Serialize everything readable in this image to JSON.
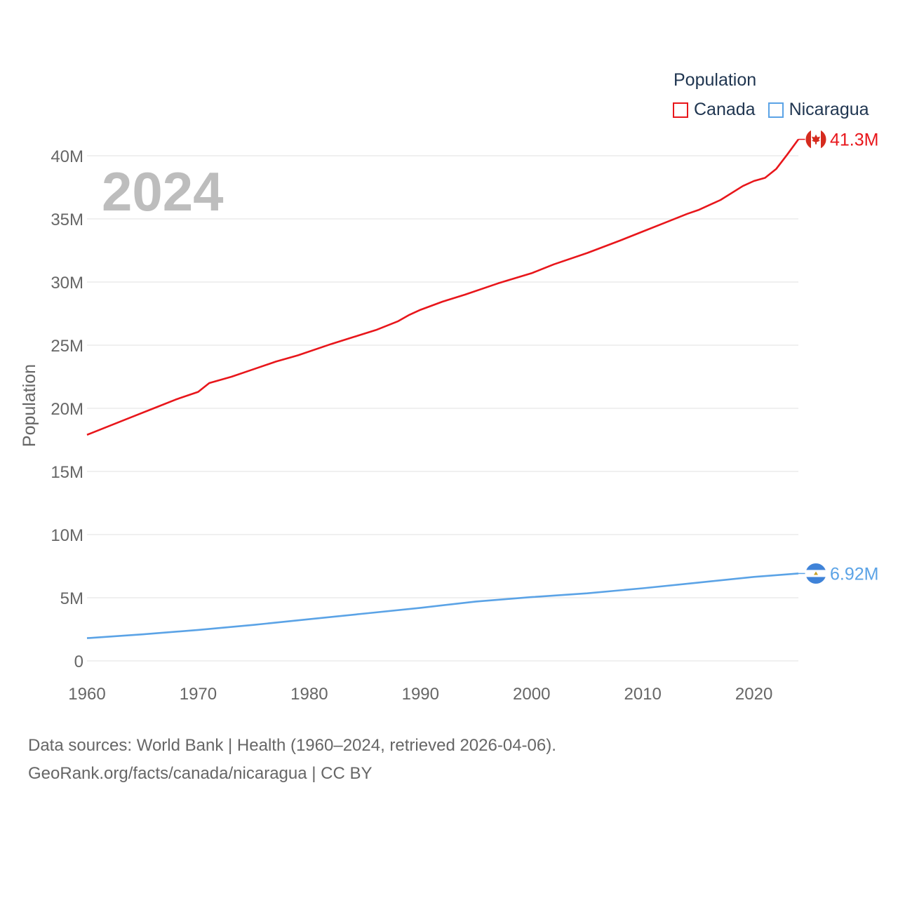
{
  "legend": {
    "title": "Population",
    "items": [
      {
        "label": "Canada",
        "color": "#e8161b"
      },
      {
        "label": "Nicaragua",
        "color": "#5ba3e6"
      }
    ]
  },
  "source": {
    "line1": "Data sources: World Bank | Health (1960–2024, retrieved 2026-04-06).",
    "line2": "GeoRank.org/facts/canada/nicaragua | CC BY"
  },
  "chart_data": {
    "type": "line",
    "year_label": "2024",
    "ylabel": "Population",
    "xlabel": "",
    "xlim": [
      1960,
      2024
    ],
    "ylim": [
      0,
      42000000
    ],
    "x_ticks": [
      1960,
      1970,
      1980,
      1990,
      2000,
      2010,
      2020
    ],
    "y_ticks": [
      {
        "value": 0,
        "label": "0"
      },
      {
        "value": 5000000,
        "label": "5M"
      },
      {
        "value": 10000000,
        "label": "10M"
      },
      {
        "value": 15000000,
        "label": "15M"
      },
      {
        "value": 20000000,
        "label": "20M"
      },
      {
        "value": 25000000,
        "label": "25M"
      },
      {
        "value": 30000000,
        "label": "30M"
      },
      {
        "value": 35000000,
        "label": "35M"
      },
      {
        "value": 40000000,
        "label": "40M"
      }
    ],
    "series": [
      {
        "name": "Canada",
        "color": "#e8161b",
        "end_label": "41.3M",
        "points": [
          [
            1960,
            17900000
          ],
          [
            1962,
            18600000
          ],
          [
            1964,
            19300000
          ],
          [
            1966,
            20000000
          ],
          [
            1968,
            20700000
          ],
          [
            1970,
            21300000
          ],
          [
            1971,
            22000000
          ],
          [
            1973,
            22500000
          ],
          [
            1975,
            23100000
          ],
          [
            1977,
            23700000
          ],
          [
            1979,
            24200000
          ],
          [
            1982,
            25100000
          ],
          [
            1984,
            25650000
          ],
          [
            1986,
            26200000
          ],
          [
            1988,
            26900000
          ],
          [
            1989,
            27400000
          ],
          [
            1990,
            27800000
          ],
          [
            1992,
            28450000
          ],
          [
            1994,
            29000000
          ],
          [
            1997,
            29900000
          ],
          [
            2000,
            30700000
          ],
          [
            2002,
            31400000
          ],
          [
            2005,
            32300000
          ],
          [
            2008,
            33300000
          ],
          [
            2010,
            34000000
          ],
          [
            2012,
            34700000
          ],
          [
            2014,
            35400000
          ],
          [
            2015,
            35700000
          ],
          [
            2017,
            36500000
          ],
          [
            2019,
            37600000
          ],
          [
            2020,
            38000000
          ],
          [
            2021,
            38250000
          ],
          [
            2022,
            38950000
          ],
          [
            2023,
            40100000
          ],
          [
            2024,
            41300000
          ]
        ]
      },
      {
        "name": "Nicaragua",
        "color": "#5ba3e6",
        "end_label": "6.92M",
        "points": [
          [
            1960,
            1800000
          ],
          [
            1965,
            2100000
          ],
          [
            1970,
            2450000
          ],
          [
            1975,
            2850000
          ],
          [
            1980,
            3300000
          ],
          [
            1985,
            3750000
          ],
          [
            1990,
            4200000
          ],
          [
            1995,
            4700000
          ],
          [
            2000,
            5050000
          ],
          [
            2005,
            5350000
          ],
          [
            2010,
            5750000
          ],
          [
            2015,
            6200000
          ],
          [
            2020,
            6650000
          ],
          [
            2024,
            6920000
          ]
        ]
      }
    ]
  }
}
